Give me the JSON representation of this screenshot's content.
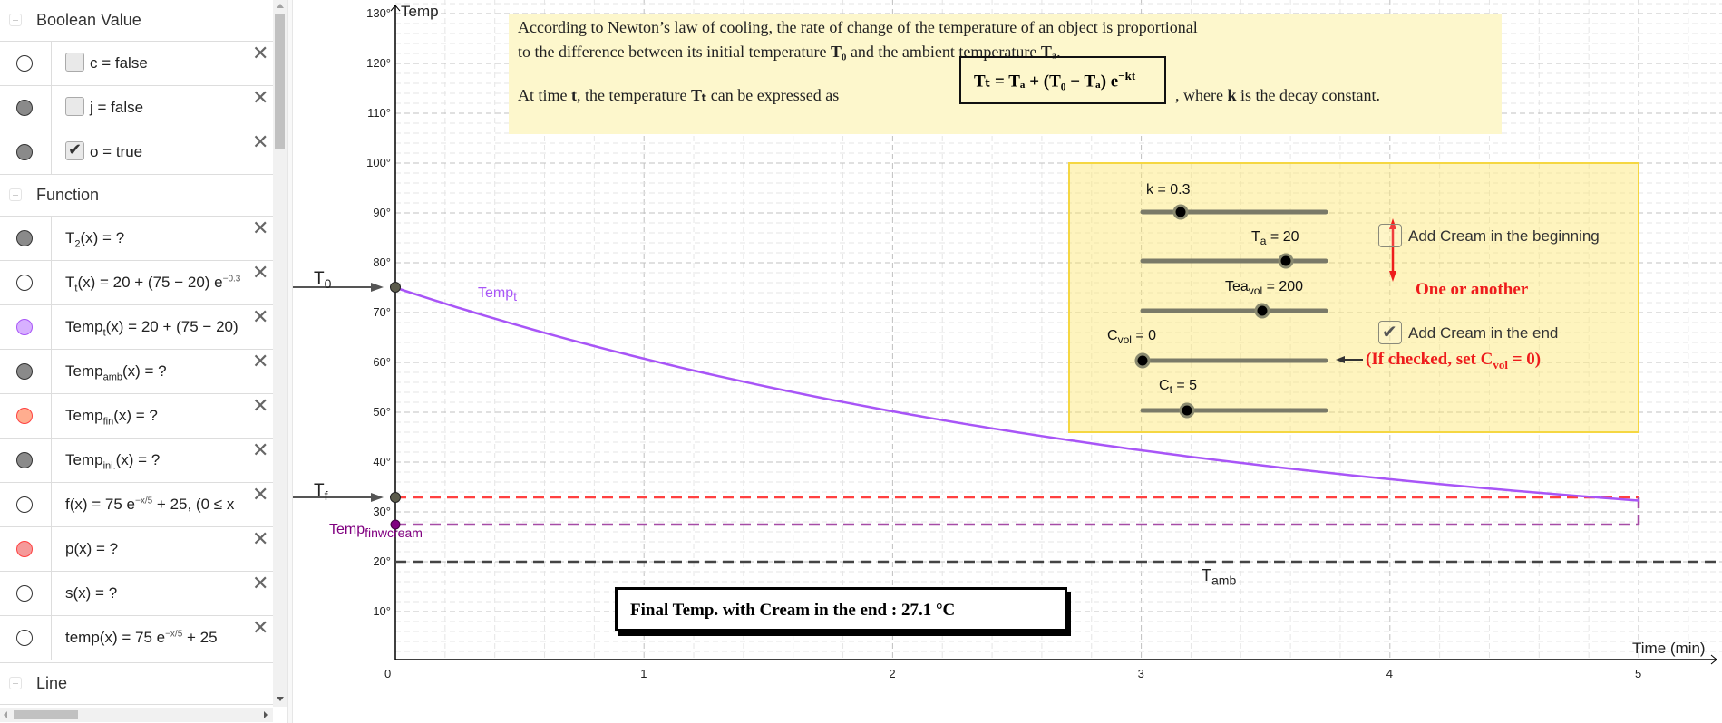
{
  "sidebar": {
    "groups": {
      "boolean": {
        "title": "Boolean Value"
      },
      "function": {
        "title": "Function"
      },
      "line": {
        "title": "Line"
      }
    },
    "booleans": [
      {
        "name": "c",
        "value": "false",
        "expr": "c = false",
        "checked": false,
        "marble": "empty"
      },
      {
        "name": "j",
        "value": "false",
        "expr": "j = false",
        "checked": false,
        "marble": "gray"
      },
      {
        "name": "o",
        "value": "true",
        "expr": "o = true",
        "checked": true,
        "marble": "gray"
      }
    ],
    "functions": [
      {
        "name": "T2",
        "expr_base": "T",
        "expr_sub": "2",
        "expr_rest": "(x) = ?",
        "marble": "gray"
      },
      {
        "name": "Tt",
        "expr_base": "T",
        "expr_sub": "t",
        "expr_rest": "(x) = 20 + (75 − 20) e",
        "expr_sup": "−0.3",
        "marble": "empty"
      },
      {
        "name": "Tempt",
        "expr_base": "Temp",
        "expr_sub": "t",
        "expr_rest": "(x) = 20 + (75 − 20)",
        "marble": "purple"
      },
      {
        "name": "Tempamb",
        "expr_base": "Temp",
        "expr_sub": "amb",
        "expr_rest": "(x) = ?",
        "marble": "gray"
      },
      {
        "name": "Tempfin",
        "expr_base": "Temp",
        "expr_sub": "fin",
        "expr_rest": "(x) = ?",
        "marble": "salmon"
      },
      {
        "name": "Tempini",
        "expr_base": "Temp",
        "expr_sub": "ini.",
        "expr_rest": "(x) = ?",
        "marble": "gray"
      },
      {
        "name": "f",
        "expr_base": "f(x) = 75 e",
        "expr_sup": "−x/5",
        "expr_rest": " + 25,    (0 ≤ x",
        "marble": "empty"
      },
      {
        "name": "p",
        "expr_base": "p(x) = ?",
        "marble": "pink"
      },
      {
        "name": "s",
        "expr_base": "s(x) = ?",
        "marble": "empty"
      },
      {
        "name": "temp",
        "expr_base": "temp(x) = 75 e",
        "expr_sup": "−x/5",
        "expr_rest": " + 25",
        "marble": "empty"
      }
    ],
    "delete_glyph": "✕"
  },
  "colors": {
    "curve": "#a855f7",
    "tf_line": "#ff4040",
    "finwcream_line": "#a64ca6",
    "amb_line": "#404040",
    "point": "#5c5c4c",
    "finwcream_point": "#800080",
    "panel_fill": "#fbeeb0",
    "panel_border": "#f5d742",
    "info_fill": "#fdf7cc",
    "red_text": "#ee1c1c"
  },
  "graph": {
    "y_axis_label": "Temp",
    "x_axis_label": "Time (min)",
    "y_ticks": [
      "130°",
      "120°",
      "110°",
      "100°",
      "90°",
      "80°",
      "70°",
      "60°",
      "50°",
      "40°",
      "30°",
      "20°",
      "10°"
    ],
    "x_ticks": [
      "0",
      "1",
      "2",
      "3",
      "4",
      "5"
    ],
    "labels": {
      "t0_base": "T",
      "t0_sub": "0",
      "tf_base": "T",
      "tf_sub": "f",
      "tempt_base": "Temp",
      "tempt_sub": "t",
      "finwcream_base": "Temp",
      "finwcream_sub": "finwcream",
      "tamb_base": "T",
      "tamb_sub": "amb"
    }
  },
  "info": {
    "line1": "According to Newton’s law of cooling, the rate of change of the temperature of an object is proportional",
    "line2_a": "to the difference between its initial temperature ",
    "line2_t0": "T₀",
    "line2_b": "  and the ambient temperature ",
    "line2_ta": "Tₐ",
    "line2_c": ".",
    "line3_a": "At time ",
    "line3_t": "t",
    "line3_b": ",  the temperature ",
    "line3_tt": "Tₜ",
    "line3_c": "  can be expressed as",
    "formula": "Tₜ = Tₐ + (T₀ − Tₐ) e",
    "formula_sup": "−kt",
    "line3_d": ",  where  ",
    "line3_k": "k",
    "line3_e": "  is the decay constant."
  },
  "sliders": [
    {
      "name": "k",
      "label_base": "k = 0.3",
      "label_sub": "",
      "label_rest": "",
      "value": 0.3
    },
    {
      "name": "Ta",
      "label_base": "T",
      "label_sub": "a",
      "label_rest": " = 20",
      "value": 20
    },
    {
      "name": "Teavol",
      "label_base": "Tea",
      "label_sub": "vol",
      "label_rest": " = 200",
      "value": 200
    },
    {
      "name": "Cvol",
      "label_base": "C",
      "label_sub": "vol",
      "label_rest": " = 0",
      "value": 0
    },
    {
      "name": "Ct",
      "label_base": "C",
      "label_sub": "t",
      "label_rest": " = 5",
      "value": 5
    }
  ],
  "checkboxes": [
    {
      "label": "Add Cream in the beginning",
      "checked": false
    },
    {
      "label": "Add Cream in the end",
      "checked": true
    }
  ],
  "notes": {
    "one_or_another": "One or another",
    "if_checked_a": "(If checked, set C",
    "if_checked_sub": "vol",
    "if_checked_b": " = 0)"
  },
  "final": {
    "label": "Final Temp. with Cream in the end :  ",
    "value": "27.1",
    "unit": " °C"
  }
}
